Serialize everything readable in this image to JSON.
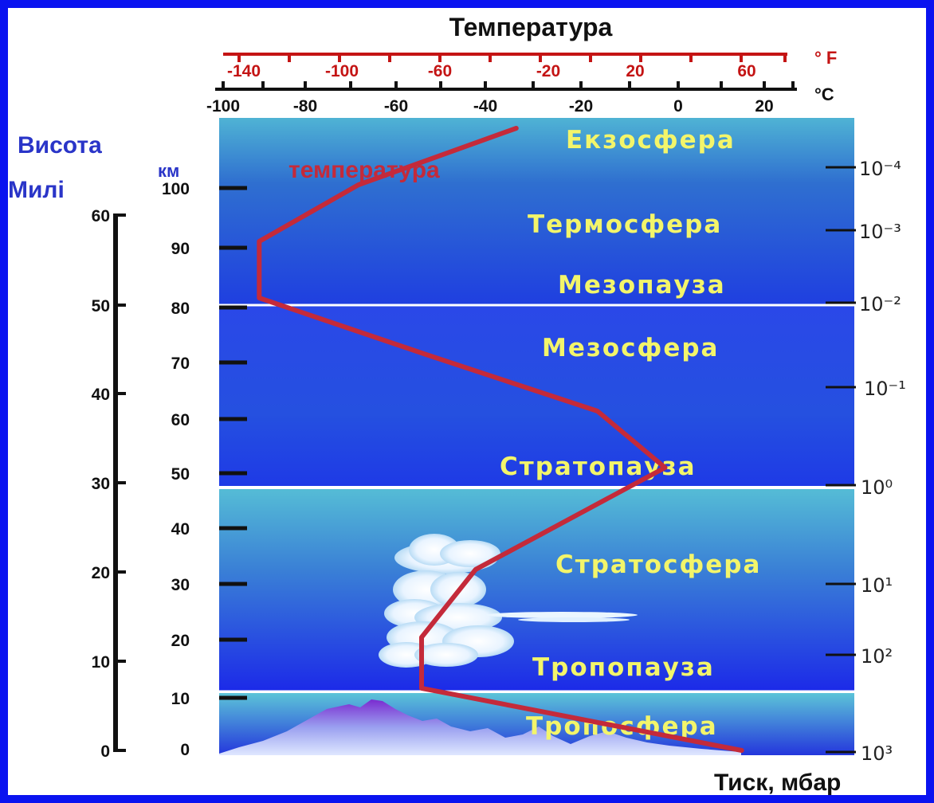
{
  "title": "Температура",
  "fahrenheit": {
    "unit": "° F",
    "ticks": [
      "-140",
      "-100",
      "-60",
      "-20",
      "20",
      "60"
    ]
  },
  "celsius": {
    "unit": "°C",
    "ticks": [
      "-100",
      "-80",
      "-60",
      "-40",
      "-20",
      "0",
      "20"
    ]
  },
  "altitude": {
    "title": "Висота",
    "km_label": "км",
    "miles_label": "Милі",
    "km_ticks": [
      "100",
      "90",
      "80",
      "70",
      "60",
      "50",
      "40",
      "30",
      "20",
      "10",
      "0"
    ],
    "mile_ticks": [
      "60",
      "50",
      "40",
      "30",
      "20",
      "10",
      "0"
    ]
  },
  "pressure": {
    "title": "Тиск, мбар",
    "ticks": [
      "10⁻⁴",
      "10⁻³",
      "10⁻²",
      "10⁻¹",
      "10⁰",
      "10¹",
      "10²",
      "10³"
    ]
  },
  "curve_label": "температура",
  "layers": {
    "exosphere": "Екзосфера",
    "thermosphere": "Термосфера",
    "mesopause": "Мезопауза",
    "mesosphere": "Мезосфера",
    "stratopause": "Стратопауза",
    "stratosphere": "Стратосфера",
    "tropopause": "Тропопауза",
    "troposphere": "Тропосфера"
  },
  "temperature_profile": [
    {
      "altitude_km": 0,
      "temperature_c": 15
    },
    {
      "altitude_km": 11,
      "temperature_c": -56
    },
    {
      "altitude_km": 20,
      "temperature_c": -56
    },
    {
      "altitude_km": 32,
      "temperature_c": -44
    },
    {
      "altitude_km": 50,
      "temperature_c": -2
    },
    {
      "altitude_km": 60,
      "temperature_c": -17
    },
    {
      "altitude_km": 70,
      "temperature_c": -55
    },
    {
      "altitude_km": 80,
      "temperature_c": -92
    },
    {
      "altitude_km": 90,
      "temperature_c": -92
    },
    {
      "altitude_km": 100,
      "temperature_c": -70
    },
    {
      "altitude_km": 110,
      "temperature_c": -35
    }
  ],
  "colors": {
    "frame": "#0a13f0",
    "curve": "#c42a3a",
    "layer_text": "#f3f56a",
    "fahrenheit_axis": "#c41414"
  }
}
